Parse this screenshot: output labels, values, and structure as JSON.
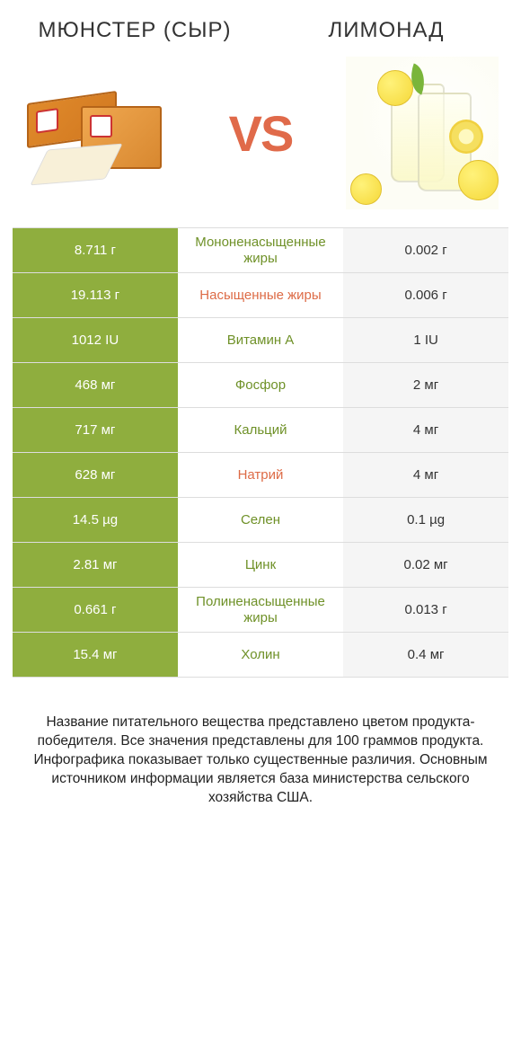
{
  "header": {
    "left_title": "МЮНСТЕР (СЫР)",
    "right_title": "ЛИМОНАД",
    "vs": "VS"
  },
  "colors": {
    "winner_bg": "#8fae3e",
    "loser_bg": "#f5f5f5",
    "nutrient_green": "#6f9128",
    "nutrient_orange": "#dd6b46",
    "vs_color": "#e06a4a",
    "border": "#dddddd"
  },
  "rows": [
    {
      "left": "8.711 г",
      "label": "Мононенасыщенные жиры",
      "right": "0.002 г",
      "label_color": "green",
      "winner": "left"
    },
    {
      "left": "19.113 г",
      "label": "Насыщенные жиры",
      "right": "0.006 г",
      "label_color": "orange",
      "winner": "left"
    },
    {
      "left": "1012 IU",
      "label": "Витамин A",
      "right": "1 IU",
      "label_color": "green",
      "winner": "left"
    },
    {
      "left": "468 мг",
      "label": "Фосфор",
      "right": "2 мг",
      "label_color": "green",
      "winner": "left"
    },
    {
      "left": "717 мг",
      "label": "Кальций",
      "right": "4 мг",
      "label_color": "green",
      "winner": "left"
    },
    {
      "left": "628 мг",
      "label": "Натрий",
      "right": "4 мг",
      "label_color": "orange",
      "winner": "left"
    },
    {
      "left": "14.5 µg",
      "label": "Селен",
      "right": "0.1 µg",
      "label_color": "green",
      "winner": "left"
    },
    {
      "left": "2.81 мг",
      "label": "Цинк",
      "right": "0.02 мг",
      "label_color": "green",
      "winner": "left"
    },
    {
      "left": "0.661 г",
      "label": "Полиненасыщенные жиры",
      "right": "0.013 г",
      "label_color": "green",
      "winner": "left"
    },
    {
      "left": "15.4 мг",
      "label": "Холин",
      "right": "0.4 мг",
      "label_color": "green",
      "winner": "left"
    }
  ],
  "footnote": "Название питательного вещества представлено цветом продукта-победителя.\nВсе значения представлены для 100 граммов продукта.\nИнфографика показывает только существенные различия.\nОсновным источником информации является база министерства сельского хозяйства США."
}
